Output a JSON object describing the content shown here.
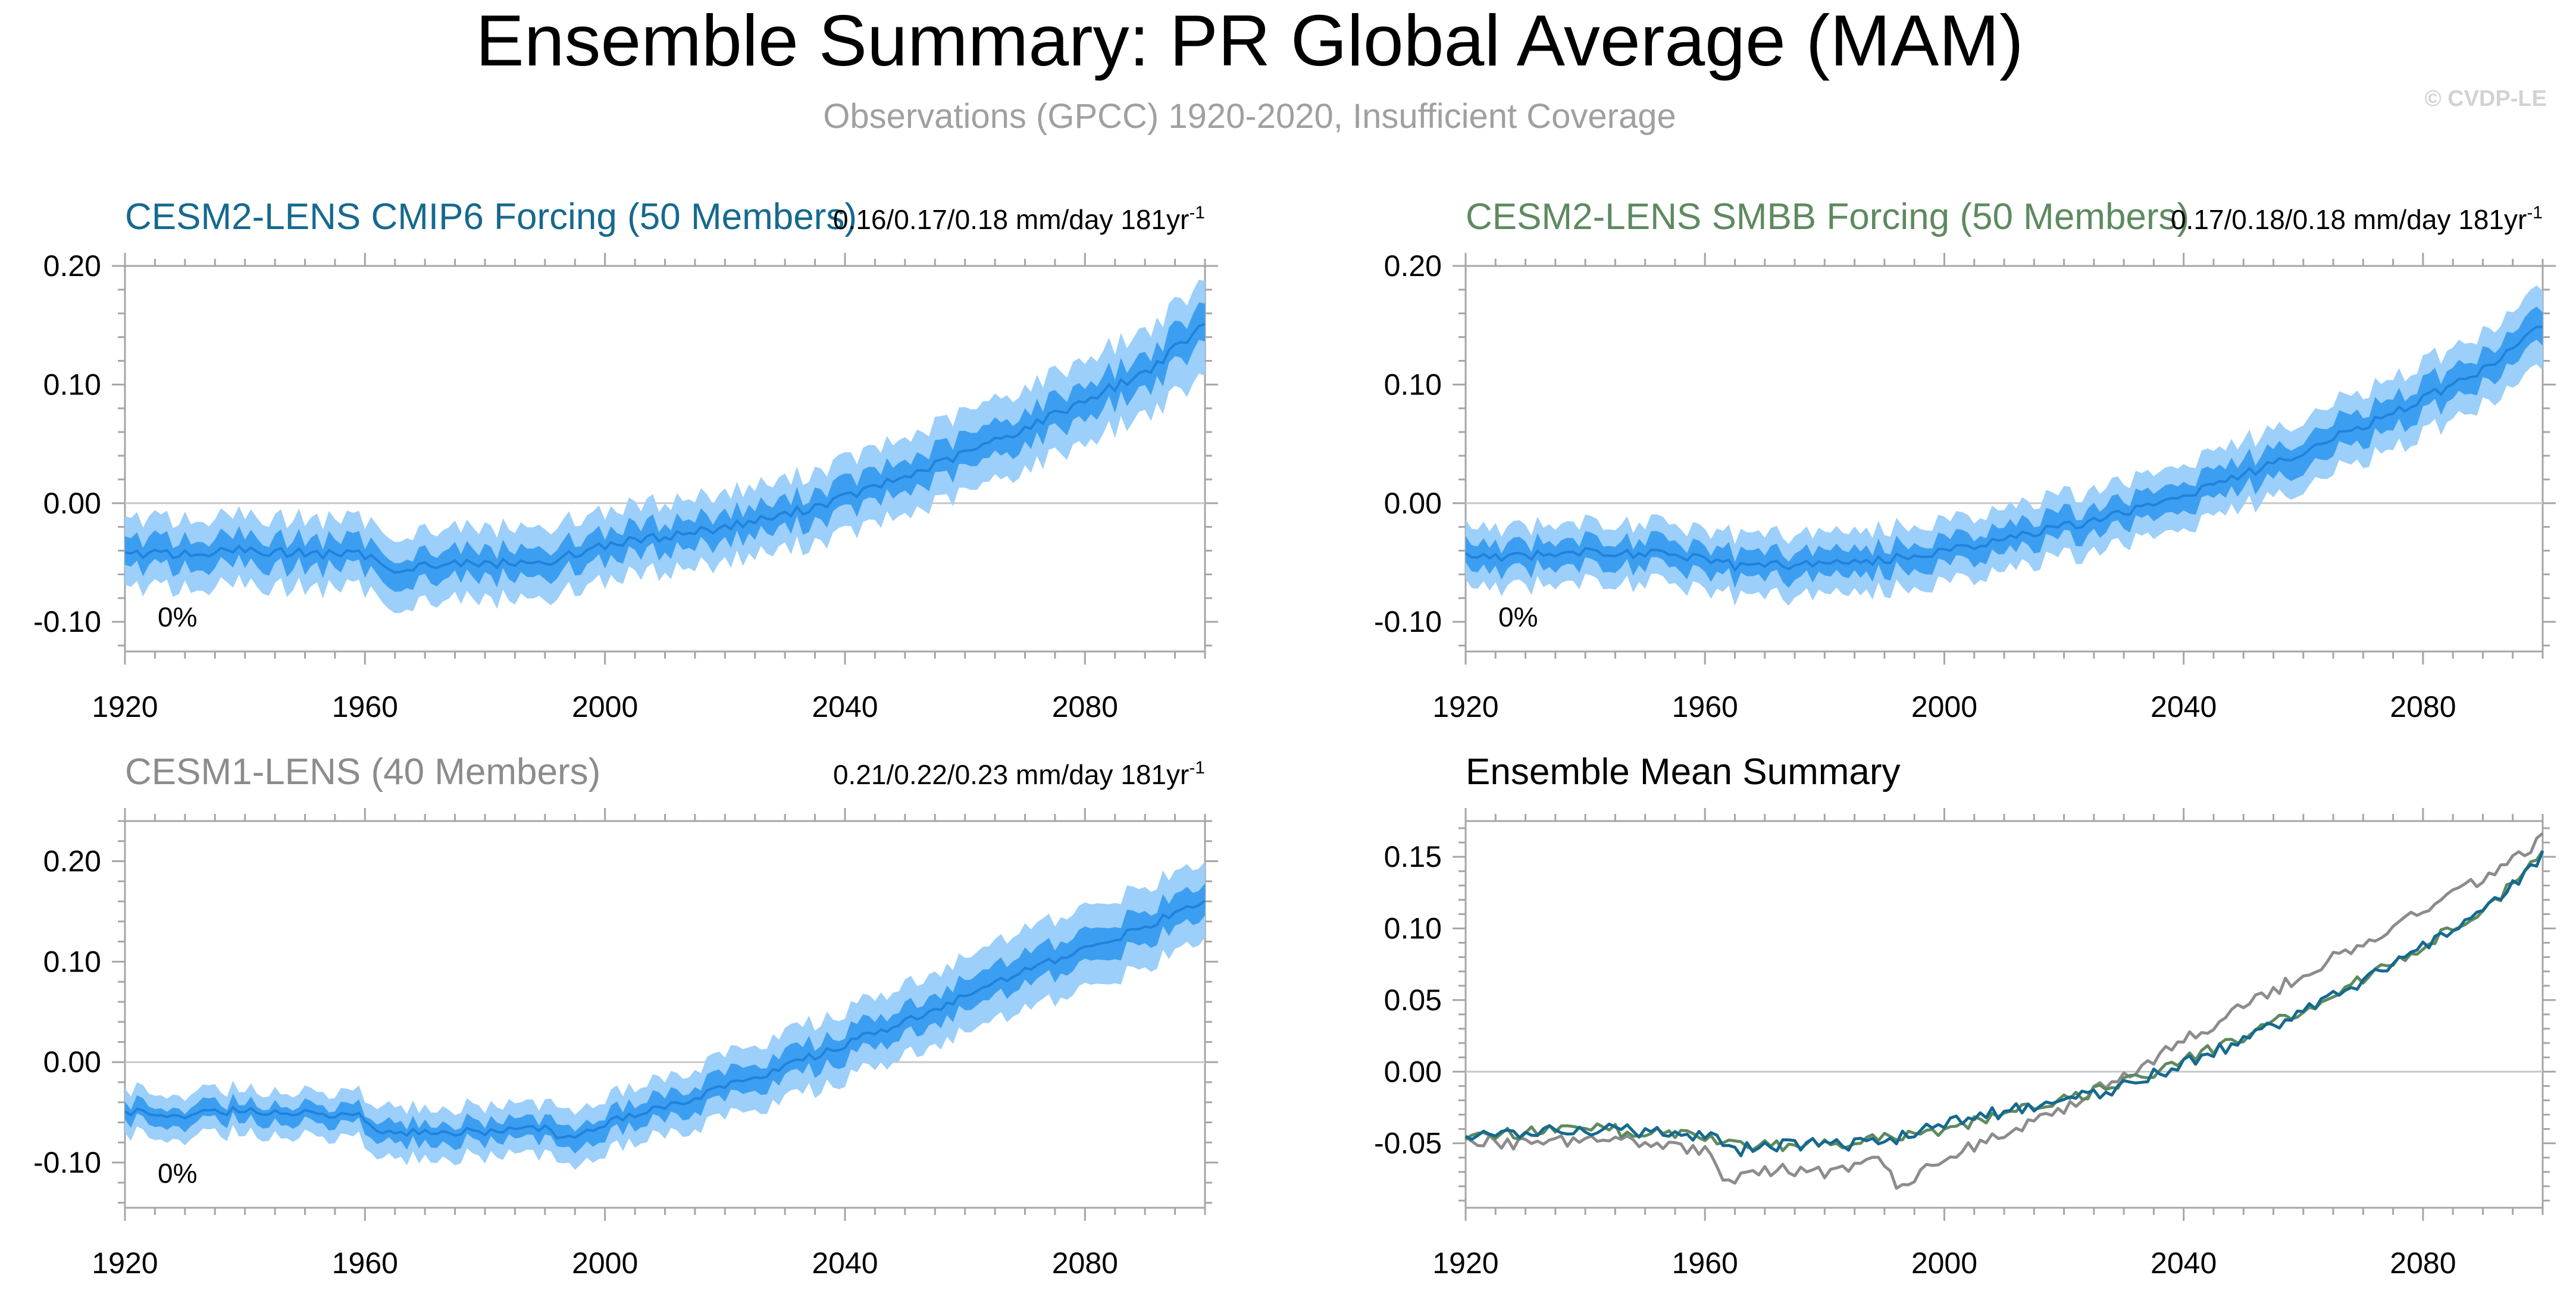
{
  "figure": {
    "title": "Ensemble Summary: PR Global Average (MAM)",
    "subtitle": "Observations (GPCC) 1920-2020, Insufficient Coverage",
    "watermark": "© CVDP-LE"
  },
  "colors": {
    "text": "#000000",
    "subtitle": "#a0a0a0",
    "watermark": "#d2d2d2",
    "band_outer": "#9ccffa",
    "band_inner": "#3c9ef0",
    "mean_line": "#1f82dc",
    "zero_line": "#c8c8c8",
    "frame": "#a6a6a6",
    "cesm2_cmip6": "#15698e",
    "cesm2_smbb": "#5d8a5f",
    "cesm1": "#8c8c8c"
  },
  "chart_data": [
    {
      "id": "cesm2-cmip6",
      "type": "area",
      "title": "CESM2-LENS CMIP6 Forcing (50 Members)",
      "title_color": "#15698e",
      "trend_text": "0.16/0.17/0.18 mm/day 181yr",
      "trend_sup": "-1",
      "percent_label": "0%",
      "xlim": [
        1920,
        2100
      ],
      "ylim": [
        -0.125,
        0.2
      ],
      "xticks": [
        1920,
        1960,
        2000,
        2040,
        2080
      ],
      "xticklabels": [
        "1920",
        "1960",
        "2000",
        "2040",
        "2080"
      ],
      "yticks": [
        -0.1,
        0,
        0.1,
        0.2
      ],
      "yticklabels": [
        "-0.10",
        "0.00",
        "0.10",
        "0.20"
      ],
      "zero_line": true,
      "grid": false,
      "ensemble": {
        "years": [
          1920,
          1930,
          1940,
          1950,
          1960,
          1965,
          1970,
          1980,
          1990,
          2000,
          2010,
          2020,
          2030,
          2040,
          2050,
          2060,
          2070,
          2080,
          2090,
          2100
        ],
        "mean": [
          -0.043,
          -0.043,
          -0.04,
          -0.042,
          -0.044,
          -0.055,
          -0.052,
          -0.051,
          -0.05,
          -0.035,
          -0.028,
          -0.02,
          -0.01,
          0.005,
          0.022,
          0.042,
          0.063,
          0.087,
          0.11,
          0.15
        ],
        "p25": [
          -0.055,
          -0.055,
          -0.052,
          -0.054,
          -0.056,
          -0.067,
          -0.064,
          -0.063,
          -0.062,
          -0.047,
          -0.04,
          -0.032,
          -0.022,
          -0.008,
          0.009,
          0.028,
          0.049,
          0.073,
          0.096,
          0.134
        ],
        "p75": [
          -0.031,
          -0.031,
          -0.028,
          -0.03,
          -0.032,
          -0.043,
          -0.04,
          -0.039,
          -0.038,
          -0.023,
          -0.016,
          -0.008,
          0.002,
          0.018,
          0.035,
          0.056,
          0.077,
          0.101,
          0.124,
          0.166
        ],
        "min": [
          -0.072,
          -0.072,
          -0.069,
          -0.071,
          -0.073,
          -0.085,
          -0.082,
          -0.081,
          -0.08,
          -0.064,
          -0.057,
          -0.049,
          -0.039,
          -0.026,
          -0.01,
          0.008,
          0.029,
          0.052,
          0.075,
          0.105
        ],
        "max": [
          -0.014,
          -0.014,
          -0.011,
          -0.013,
          -0.015,
          -0.025,
          -0.022,
          -0.021,
          -0.02,
          -0.006,
          0.001,
          0.009,
          0.019,
          0.036,
          0.054,
          0.076,
          0.097,
          0.122,
          0.145,
          0.185
        ]
      }
    },
    {
      "id": "cesm2-smbb",
      "type": "area",
      "title": "CESM2-LENS SMBB Forcing (50 Members)",
      "title_color": "#5d8a5f",
      "trend_text": "0.17/0.18/0.18 mm/day 181yr",
      "trend_sup": "-1",
      "percent_label": "0%",
      "xlim": [
        1920,
        2100
      ],
      "ylim": [
        -0.125,
        0.2
      ],
      "xticks": [
        1920,
        1960,
        2000,
        2040,
        2080
      ],
      "xticklabels": [
        "1920",
        "1960",
        "2000",
        "2040",
        "2080"
      ],
      "yticks": [
        -0.1,
        0,
        0.1,
        0.2
      ],
      "yticklabels": [
        "-0.10",
        "0.00",
        "0.10",
        "0.20"
      ],
      "zero_line": true,
      "grid": false,
      "ensemble": {
        "years": [
          1920,
          1930,
          1940,
          1950,
          1960,
          1965,
          1970,
          1980,
          1990,
          2000,
          2010,
          2020,
          2030,
          2040,
          2050,
          2060,
          2070,
          2080,
          2090,
          2100
        ],
        "mean": [
          -0.045,
          -0.044,
          -0.041,
          -0.043,
          -0.045,
          -0.053,
          -0.052,
          -0.051,
          -0.048,
          -0.04,
          -0.03,
          -0.02,
          -0.008,
          0.007,
          0.024,
          0.044,
          0.065,
          0.088,
          0.112,
          0.15
        ],
        "p25": [
          -0.056,
          -0.055,
          -0.052,
          -0.054,
          -0.056,
          -0.064,
          -0.063,
          -0.062,
          -0.059,
          -0.051,
          -0.041,
          -0.031,
          -0.019,
          -0.005,
          0.012,
          0.031,
          0.052,
          0.075,
          0.099,
          0.136
        ],
        "p75": [
          -0.034,
          -0.033,
          -0.03,
          -0.032,
          -0.034,
          -0.042,
          -0.041,
          -0.04,
          -0.037,
          -0.029,
          -0.019,
          -0.009,
          0.003,
          0.019,
          0.036,
          0.057,
          0.078,
          0.101,
          0.125,
          0.164
        ],
        "min": [
          -0.07,
          -0.069,
          -0.066,
          -0.068,
          -0.07,
          -0.079,
          -0.078,
          -0.077,
          -0.074,
          -0.066,
          -0.056,
          -0.046,
          -0.034,
          -0.02,
          -0.003,
          0.015,
          0.036,
          0.058,
          0.082,
          0.115
        ],
        "max": [
          -0.02,
          -0.019,
          -0.016,
          -0.018,
          -0.02,
          -0.027,
          -0.026,
          -0.025,
          -0.022,
          -0.014,
          -0.004,
          0.006,
          0.018,
          0.034,
          0.052,
          0.073,
          0.094,
          0.118,
          0.142,
          0.182
        ]
      }
    },
    {
      "id": "cesm1",
      "type": "area",
      "title": "CESM1-LENS (40 Members)",
      "title_color": "#8c8c8c",
      "trend_text": "0.21/0.22/0.23 mm/day 181yr",
      "trend_sup": "-1",
      "percent_label": "0%",
      "xlim": [
        1920,
        2100
      ],
      "ylim": [
        -0.145,
        0.24
      ],
      "xticks": [
        1920,
        1960,
        2000,
        2040,
        2080
      ],
      "xticklabels": [
        "1920",
        "1960",
        "2000",
        "2040",
        "2080"
      ],
      "yticks": [
        -0.1,
        0,
        0.1,
        0.2
      ],
      "yticklabels": [
        "-0.10",
        "0.00",
        "0.10",
        "0.20"
      ],
      "zero_line": true,
      "grid": false,
      "ensemble": {
        "years": [
          1920,
          1930,
          1940,
          1950,
          1960,
          1963,
          1970,
          1980,
          1990,
          1992,
          2000,
          2010,
          2020,
          2030,
          2040,
          2050,
          2060,
          2070,
          2080,
          2090,
          2100
        ],
        "mean": [
          -0.05,
          -0.052,
          -0.048,
          -0.05,
          -0.055,
          -0.072,
          -0.068,
          -0.07,
          -0.064,
          -0.078,
          -0.06,
          -0.045,
          -0.025,
          -0.005,
          0.018,
          0.04,
          0.065,
          0.09,
          0.112,
          0.135,
          0.16
        ],
        "p25": [
          -0.059,
          -0.061,
          -0.057,
          -0.059,
          -0.064,
          -0.082,
          -0.078,
          -0.08,
          -0.074,
          -0.089,
          -0.071,
          -0.057,
          -0.038,
          -0.018,
          0.004,
          0.026,
          0.05,
          0.074,
          0.096,
          0.119,
          0.144
        ],
        "p75": [
          -0.041,
          -0.043,
          -0.039,
          -0.041,
          -0.046,
          -0.062,
          -0.058,
          -0.06,
          -0.054,
          -0.067,
          -0.049,
          -0.033,
          -0.012,
          0.008,
          0.032,
          0.054,
          0.08,
          0.106,
          0.128,
          0.151,
          0.176
        ],
        "min": [
          -0.072,
          -0.074,
          -0.07,
          -0.072,
          -0.078,
          -0.098,
          -0.093,
          -0.095,
          -0.089,
          -0.105,
          -0.087,
          -0.073,
          -0.056,
          -0.038,
          -0.016,
          0.006,
          0.028,
          0.05,
          0.072,
          0.095,
          0.122
        ],
        "max": [
          -0.028,
          -0.03,
          -0.026,
          -0.028,
          -0.032,
          -0.046,
          -0.043,
          -0.045,
          -0.039,
          -0.05,
          -0.033,
          -0.017,
          0.006,
          0.028,
          0.052,
          0.076,
          0.102,
          0.13,
          0.152,
          0.175,
          0.198
        ]
      }
    },
    {
      "id": "ensemble-mean-summary",
      "type": "line",
      "title": "Ensemble Mean Summary",
      "title_color": "#000000",
      "xlim": [
        1920,
        2100
      ],
      "ylim": [
        -0.095,
        0.175
      ],
      "xticks": [
        1920,
        1960,
        2000,
        2040,
        2080
      ],
      "xticklabels": [
        "1920",
        "1960",
        "2000",
        "2040",
        "2080"
      ],
      "yticks": [
        -0.05,
        0,
        0.05,
        0.1,
        0.15
      ],
      "yticklabels": [
        "-0.05",
        "0.00",
        "0.05",
        "0.10",
        "0.15"
      ],
      "zero_line": true,
      "grid": false,
      "series": [
        {
          "color": "#8c8c8c",
          "x": [
            1920,
            1930,
            1940,
            1950,
            1960,
            1963,
            1970,
            1980,
            1990,
            1992,
            2000,
            2010,
            2020,
            2030,
            2040,
            2050,
            2060,
            2070,
            2080,
            2090,
            2100
          ],
          "y": [
            -0.048,
            -0.05,
            -0.047,
            -0.05,
            -0.054,
            -0.078,
            -0.068,
            -0.07,
            -0.062,
            -0.082,
            -0.06,
            -0.044,
            -0.025,
            -0.003,
            0.022,
            0.045,
            0.068,
            0.09,
            0.112,
            0.135,
            0.163
          ]
        },
        {
          "color": "#5d8a5f",
          "x": [
            1920,
            1930,
            1940,
            1950,
            1960,
            1965,
            1970,
            1980,
            1990,
            2000,
            2010,
            2020,
            2030,
            2040,
            2050,
            2060,
            2070,
            2080,
            2090,
            2100
          ],
          "y": [
            -0.044,
            -0.043,
            -0.04,
            -0.042,
            -0.044,
            -0.052,
            -0.051,
            -0.05,
            -0.047,
            -0.04,
            -0.03,
            -0.02,
            -0.008,
            0.007,
            0.024,
            0.044,
            0.065,
            0.088,
            0.112,
            0.15
          ]
        },
        {
          "color": "#15698e",
          "x": [
            1920,
            1930,
            1940,
            1950,
            1960,
            1965,
            1970,
            1980,
            1990,
            2000,
            2010,
            2020,
            2030,
            2040,
            2050,
            2060,
            2070,
            2080,
            2090,
            2100
          ],
          "y": [
            -0.043,
            -0.043,
            -0.04,
            -0.042,
            -0.044,
            -0.055,
            -0.052,
            -0.051,
            -0.05,
            -0.035,
            -0.028,
            -0.02,
            -0.01,
            0.005,
            0.022,
            0.042,
            0.063,
            0.087,
            0.11,
            0.15
          ]
        }
      ]
    }
  ]
}
